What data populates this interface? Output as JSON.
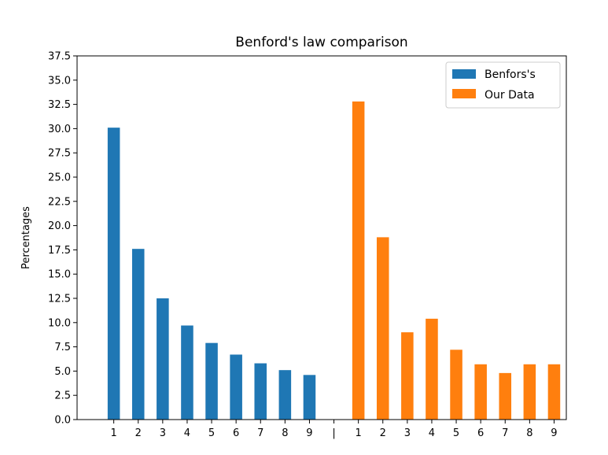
{
  "chart_data": {
    "type": "bar",
    "title": "Benford's law comparison",
    "xlabel": "",
    "ylabel": "Percentages",
    "ylim": [
      0,
      37.5
    ],
    "yticks": [
      "0.0",
      "2.5",
      "5.0",
      "7.5",
      "10.0",
      "12.5",
      "15.0",
      "17.5",
      "20.0",
      "22.5",
      "25.0",
      "27.5",
      "30.0",
      "32.5",
      "35.0",
      "37.5"
    ],
    "xticks": [
      "1",
      "2",
      "3",
      "4",
      "5",
      "6",
      "7",
      "8",
      "9",
      "|",
      "1",
      "2",
      "3",
      "4",
      "5",
      "6",
      "7",
      "8",
      "9"
    ],
    "grid": false,
    "legend_position": "top-right",
    "series": [
      {
        "name": "Benfors's",
        "color": "#1f77b4",
        "positions": [
          1,
          2,
          3,
          4,
          5,
          6,
          7,
          8,
          9
        ],
        "categories": [
          "1",
          "2",
          "3",
          "4",
          "5",
          "6",
          "7",
          "8",
          "9"
        ],
        "values": [
          30.1,
          17.6,
          12.5,
          9.7,
          7.9,
          6.7,
          5.8,
          5.1,
          4.6
        ]
      },
      {
        "name": "Our Data",
        "color": "#ff7f0e",
        "positions": [
          11,
          12,
          13,
          14,
          15,
          16,
          17,
          18,
          19
        ],
        "categories": [
          "1",
          "2",
          "3",
          "4",
          "5",
          "6",
          "7",
          "8",
          "9"
        ],
        "values": [
          32.8,
          18.8,
          9.0,
          10.4,
          7.2,
          5.7,
          4.8,
          5.7,
          5.7
        ]
      }
    ]
  }
}
